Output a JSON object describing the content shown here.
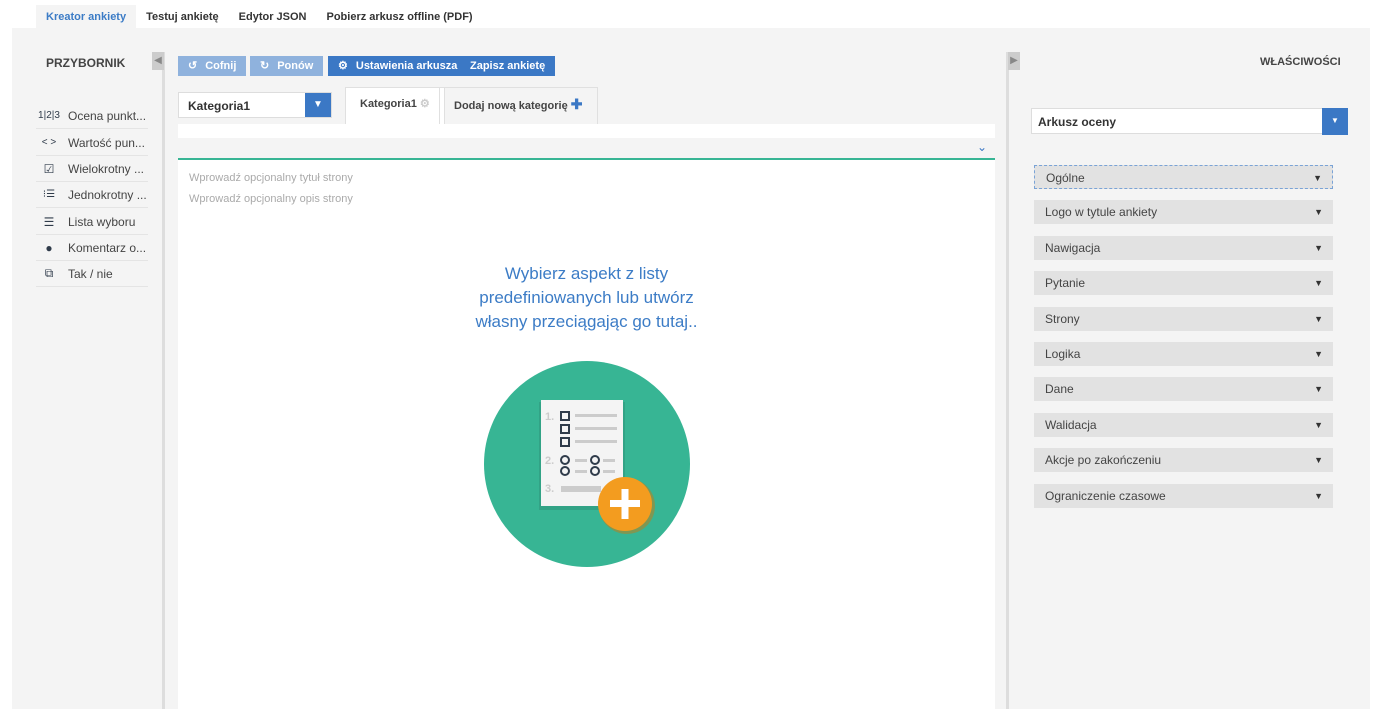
{
  "top_tabs": [
    {
      "label": "Kreator ankiety",
      "active": true
    },
    {
      "label": "Testuj ankietę"
    },
    {
      "label": "Edytor JSON"
    },
    {
      "label": "Pobierz arkusz offline (PDF)"
    }
  ],
  "toolbox": {
    "title": "PRZYBORNIK",
    "items": [
      {
        "label": "Ocena punkt...",
        "icon": "rating-icon"
      },
      {
        "label": "Wartość pun...",
        "icon": "code-icon"
      },
      {
        "label": "Wielokrotny ...",
        "icon": "checkbox-icon"
      },
      {
        "label": "Jednokrotny ...",
        "icon": "radiogroup-icon"
      },
      {
        "label": "Lista wyboru",
        "icon": "dropdown-icon"
      },
      {
        "label": "Komentarz o...",
        "icon": "comment-icon"
      },
      {
        "label": "Tak / nie",
        "icon": "boolean-icon"
      }
    ]
  },
  "toolbar": {
    "undo": "Cofnij",
    "redo": "Ponów",
    "settings": "Ustawienia arkusza",
    "save": "Zapisz ankietę"
  },
  "page_select": {
    "value": "Kategoria1"
  },
  "page_tabs": {
    "current": "Kategoria1",
    "add": "Dodaj nową kategorię"
  },
  "page": {
    "title_placeholder": "Wprowadź opcjonalny tytuł strony",
    "desc_placeholder": "Wprowadź opcjonalny opis strony",
    "empty_msg_1": "Wybierz aspekt z listy",
    "empty_msg_2": "predefiniowanych lub utwórz",
    "empty_msg_3": "własny przeciągając go tutaj.."
  },
  "properties": {
    "title": "WŁAŚCIWOŚCI",
    "object": "Arkusz oceny",
    "sections": [
      "Ogólne",
      "Logo w tytule ankiety",
      "Nawigacja",
      "Pytanie",
      "Strony",
      "Logika",
      "Dane",
      "Walidacja",
      "Akcje po zakończeniu",
      "Ograniczenie czasowe"
    ]
  },
  "colors": {
    "accent": "#3b78c5",
    "teal": "#37b594",
    "orange": "#f39c1f"
  }
}
